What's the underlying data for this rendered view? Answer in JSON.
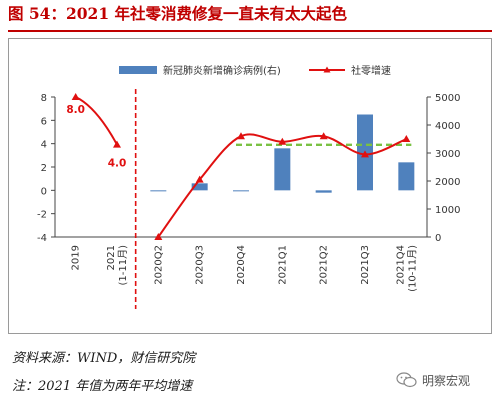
{
  "title": "图 54：2021 年社零消费修复一直未有太大起色",
  "source_note": "资料来源：WIND，财信研究院",
  "footnote": "注：2021 年值为两年平均增速",
  "logo_text": "明察宏观",
  "colors": {
    "title": "#c00000",
    "bar": "#4f81bd",
    "line": "#e01010",
    "dashed_green": "#7ac143",
    "divider": "#e01010"
  },
  "chart_data": {
    "type": "bar+line",
    "categories": [
      "2019",
      "2021\n(1-11月)",
      "2020Q2",
      "2020Q3",
      "2020Q4",
      "2021Q1",
      "2021Q2",
      "2021Q3",
      "2021Q4\n(10-11月)"
    ],
    "legend": [
      "新冠肺炎新增确诊病例(右)",
      "社零增速"
    ],
    "left_axis": {
      "min": -4,
      "max": 8,
      "ticks": [
        -4,
        -2,
        0,
        2,
        4,
        6,
        8
      ]
    },
    "right_axis": {
      "min": 0,
      "max": 5000,
      "ticks": [
        0,
        1000,
        2000,
        3000,
        4000,
        5000
      ]
    },
    "series": [
      {
        "name": "新冠肺炎新增确诊病例(右)",
        "type": "bar",
        "axis": "left",
        "values": [
          null,
          null,
          0.0,
          0.6,
          0.0,
          3.6,
          -0.2,
          6.5,
          2.4
        ]
      },
      {
        "name": "社零增速",
        "type": "line",
        "axis": "right",
        "values": [
          5000,
          3300,
          0,
          2050,
          3600,
          3400,
          3600,
          2950,
          3500
        ],
        "labels": [
          "8.0",
          "4.0",
          "",
          "",
          "",
          "",
          "",
          "",
          ""
        ]
      }
    ],
    "reference_line": {
      "style": "dashed",
      "axis": "left",
      "value": 3.9,
      "from_category": 4,
      "to_category": 8
    },
    "divider_after_category": 1,
    "legend_position": "top"
  }
}
